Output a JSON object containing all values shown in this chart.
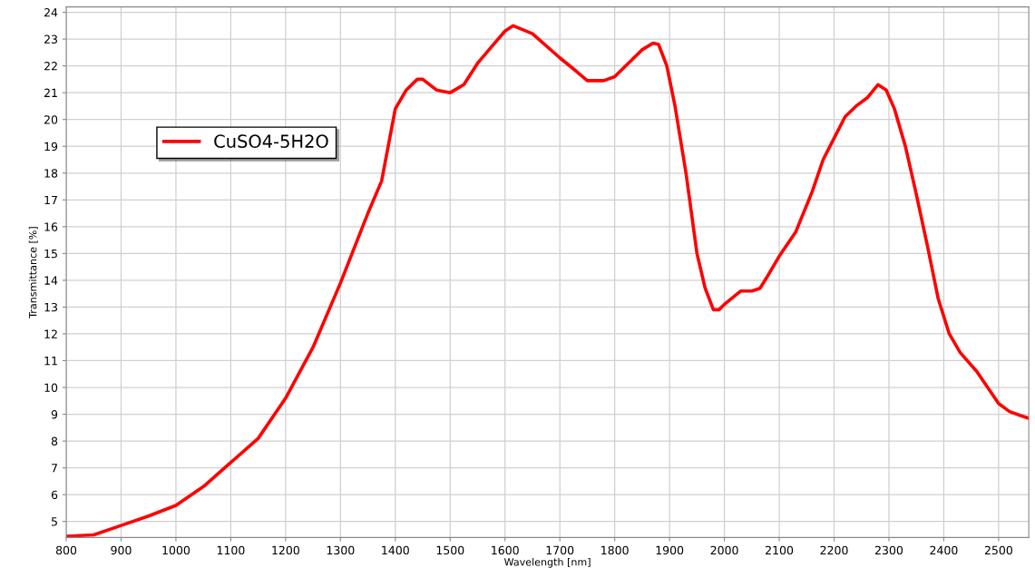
{
  "chart_data": {
    "type": "line",
    "xlabel": "Wavelength [nm]",
    "ylabel": "Transmittance [%]",
    "xlim": [
      800,
      2555
    ],
    "ylim": [
      4.4,
      24.2
    ],
    "xticks": [
      800,
      900,
      1000,
      1100,
      1200,
      1300,
      1400,
      1500,
      1600,
      1700,
      1800,
      1900,
      2000,
      2100,
      2200,
      2300,
      2400,
      2500
    ],
    "yticks": [
      5,
      6,
      7,
      8,
      9,
      10,
      11,
      12,
      13,
      14,
      15,
      16,
      17,
      18,
      19,
      20,
      21,
      22,
      23,
      24
    ],
    "grid": true,
    "legend": "top left",
    "marker": "none",
    "line_style": "solid",
    "series": [
      {
        "name": "CuSO4-5H2O",
        "color": "#ff0000",
        "x": [
          800,
          850,
          900,
          950,
          1000,
          1050,
          1100,
          1150,
          1200,
          1250,
          1300,
          1350,
          1375,
          1400,
          1420,
          1440,
          1450,
          1475,
          1500,
          1525,
          1550,
          1575,
          1600,
          1615,
          1650,
          1700,
          1730,
          1750,
          1780,
          1800,
          1830,
          1850,
          1870,
          1880,
          1895,
          1910,
          1930,
          1950,
          1965,
          1980,
          1990,
          2000,
          2030,
          2050,
          2065,
          2080,
          2100,
          2130,
          2160,
          2180,
          2200,
          2220,
          2240,
          2260,
          2280,
          2295,
          2310,
          2330,
          2350,
          2370,
          2390,
          2410,
          2430,
          2460,
          2480,
          2500,
          2520,
          2540,
          2555
        ],
        "values": [
          4.45,
          4.5,
          4.85,
          5.2,
          5.6,
          6.3,
          7.2,
          8.1,
          9.6,
          11.5,
          13.9,
          16.5,
          17.7,
          20.4,
          21.1,
          21.5,
          21.5,
          21.1,
          21.0,
          21.3,
          22.1,
          22.7,
          23.3,
          23.5,
          23.2,
          22.3,
          21.8,
          21.45,
          21.45,
          21.6,
          22.2,
          22.6,
          22.85,
          22.8,
          22.0,
          20.5,
          18.0,
          15.0,
          13.7,
          12.9,
          12.9,
          13.1,
          13.6,
          13.6,
          13.7,
          14.2,
          14.9,
          15.8,
          17.3,
          18.5,
          19.3,
          20.1,
          20.5,
          20.8,
          21.3,
          21.1,
          20.4,
          19.0,
          17.2,
          15.3,
          13.3,
          12.0,
          11.3,
          10.6,
          10.0,
          9.4,
          9.1,
          8.95,
          8.85
        ]
      }
    ]
  }
}
